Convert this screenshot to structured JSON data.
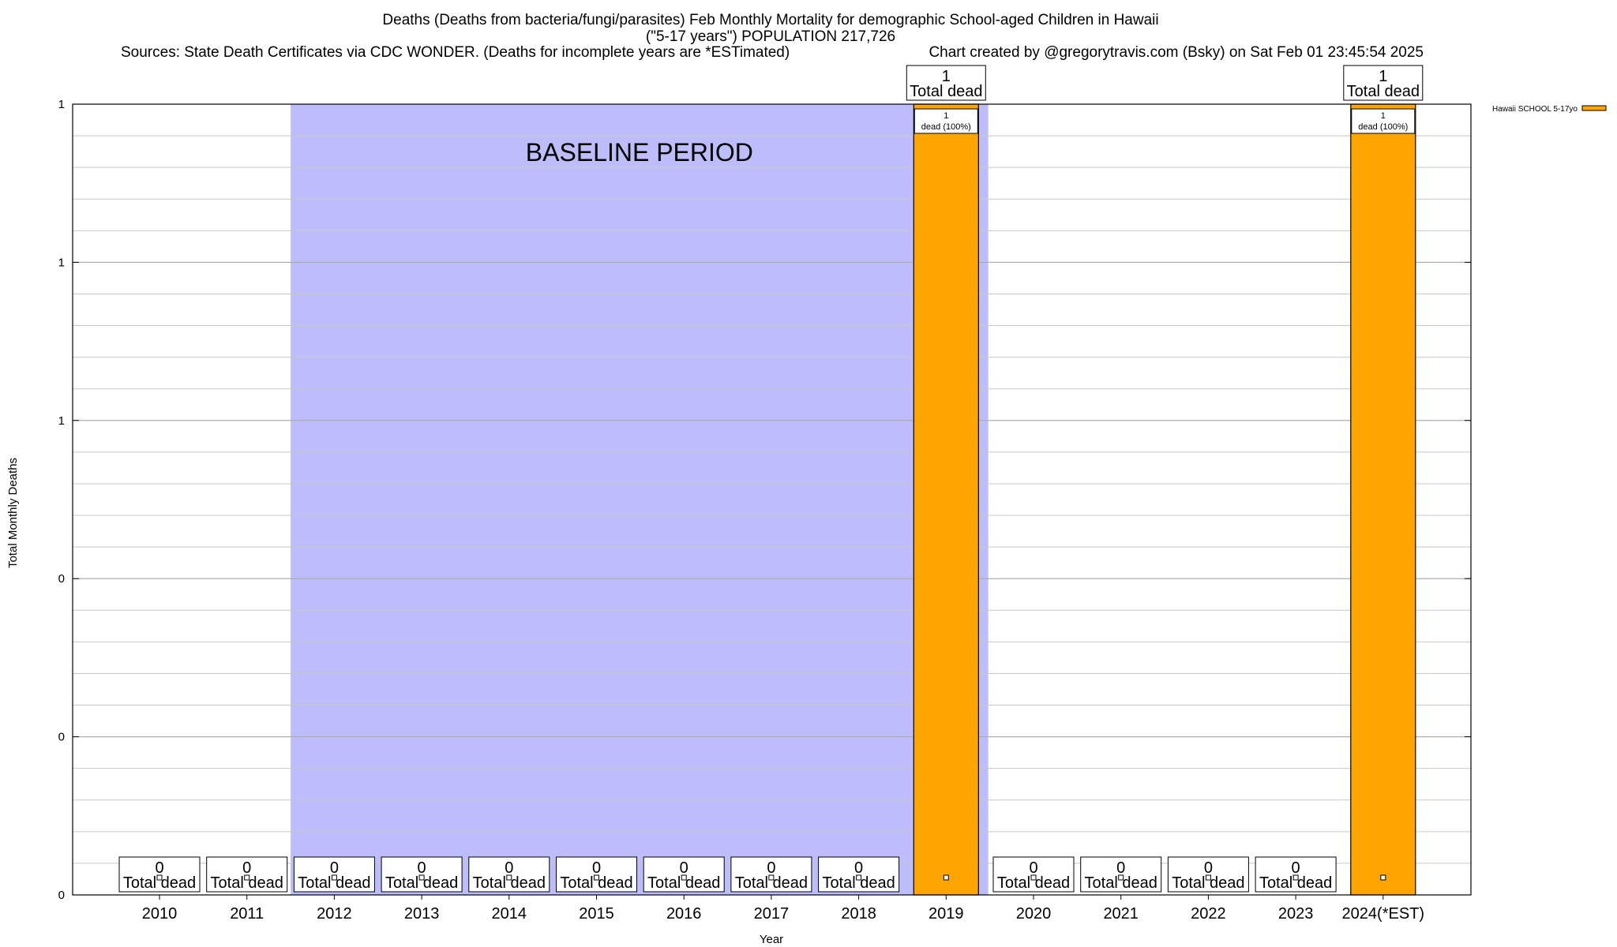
{
  "title": {
    "line1": "Deaths (Deaths from bacteria/fungi/parasites) Feb Monthly Mortality for demographic School-aged Children in Hawaii",
    "line2": "(\"5-17 years\") POPULATION 217,726",
    "sources": "Sources: State Death Certificates via CDC WONDER. (Deaths for incomplete years are *ESTimated)",
    "credit": "Chart created by @gregorytravis.com (Bsky) on Sat Feb 01 23:45:54 2025"
  },
  "chart_data": {
    "type": "bar",
    "title": "Deaths (Deaths from bacteria/fungi/parasites) Feb Monthly Mortality for demographic School-aged Children in Hawaii",
    "xlabel": "Year",
    "ylabel": "Total Monthly Deaths",
    "categories": [
      "2010",
      "2011",
      "2012",
      "2013",
      "2014",
      "2015",
      "2016",
      "2017",
      "2018",
      "2019",
      "2020",
      "2021",
      "2022",
      "2023",
      "2024(*EST)"
    ],
    "series": [
      {
        "name": "Hawaii SCHOOL 5-17yo",
        "values": [
          0,
          0,
          0,
          0,
          0,
          0,
          0,
          0,
          0,
          1,
          0,
          0,
          0,
          0,
          1
        ],
        "color": "#ffa500"
      }
    ],
    "ylim": [
      0,
      1
    ],
    "y_ticks": [
      0,
      0.2,
      0.4,
      0.6,
      0.8,
      1
    ],
    "y_tick_labels": [
      "0",
      "0",
      "0",
      "1",
      "1",
      "1"
    ],
    "baseline_period": {
      "from": "2012",
      "to": "2019",
      "label": "BASELINE PERIOD",
      "color": "#bdbdfb"
    },
    "total_label_text": "Total dead",
    "inbar_label_text": "dead (100%)",
    "legend_position": "top-right",
    "grid": true
  }
}
